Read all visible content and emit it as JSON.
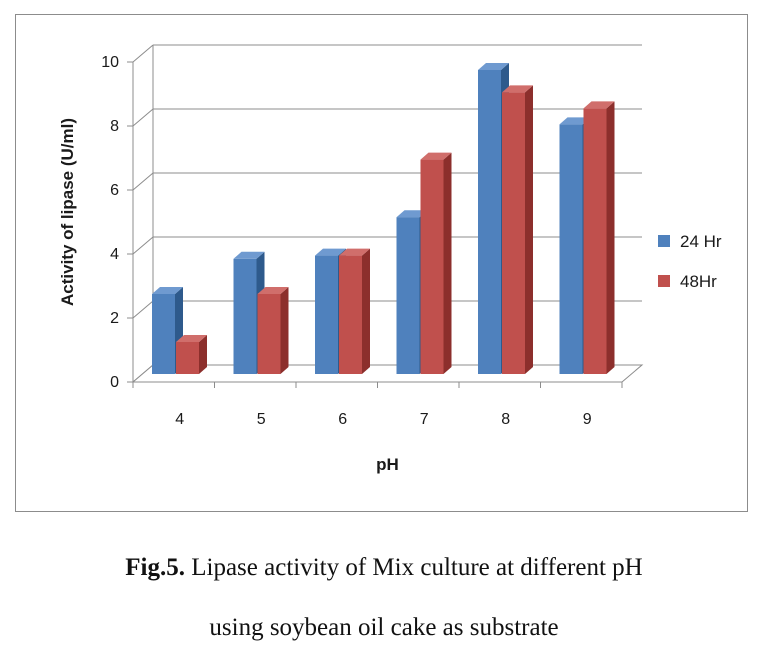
{
  "chart_data": {
    "type": "bar",
    "title": "",
    "xlabel": "pH",
    "ylabel": "Activity of lipase (U/ml)",
    "categories": [
      "4",
      "5",
      "6",
      "7",
      "8",
      "9"
    ],
    "series": [
      {
        "name": "24 Hr",
        "color": "#4f81bd",
        "side_color": "#2e5a8c",
        "top_color": "#6f9ad0",
        "values": [
          2.5,
          3.6,
          3.7,
          4.9,
          9.5,
          7.8
        ]
      },
      {
        "name": "48Hr",
        "color": "#c0504d",
        "side_color": "#8c2f2c",
        "top_color": "#d06e6b",
        "values": [
          1.0,
          2.5,
          3.7,
          6.7,
          8.8,
          8.3
        ]
      }
    ],
    "ylim": [
      0,
      10
    ],
    "yticks": [
      "0",
      "2",
      "4",
      "6",
      "8",
      "10"
    ],
    "grid": true,
    "legend_position": "right"
  },
  "caption": {
    "label": "Fig.5.",
    "line1": "Lipase activity of Mix culture at different pH",
    "line2": "using soybean oil cake as substrate"
  }
}
